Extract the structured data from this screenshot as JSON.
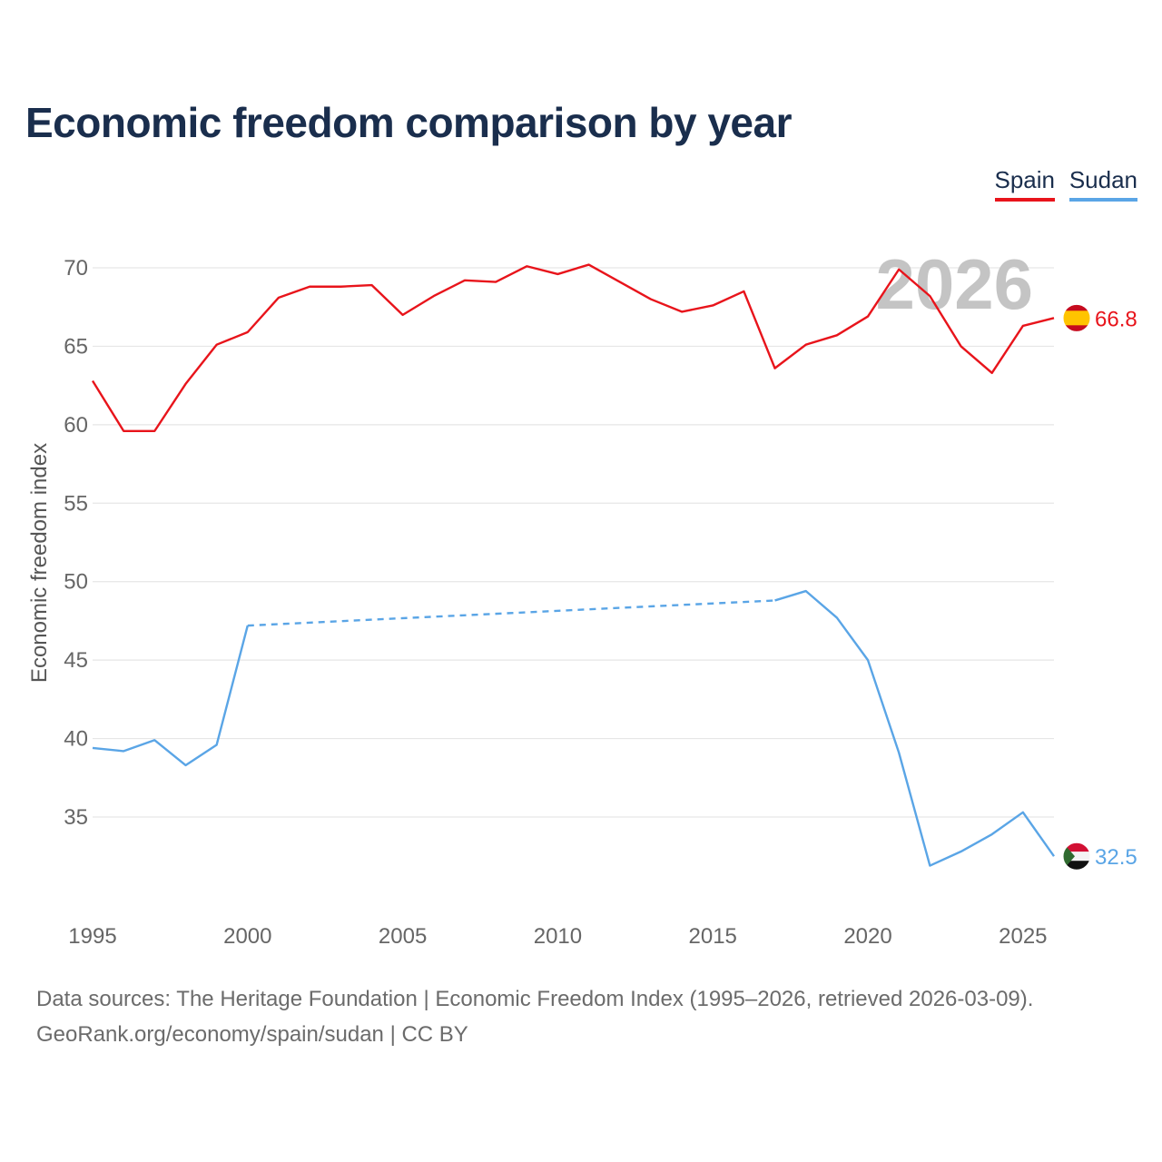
{
  "title": "Economic freedom comparison by year",
  "legend": [
    {
      "name": "Spain",
      "color": "#e8141b"
    },
    {
      "name": "Sudan",
      "color": "#5aa5e6"
    }
  ],
  "source": {
    "line1": "Data sources: The Heritage Foundation | Economic Freedom Index (1995–2026, retrieved 2026-03-09).",
    "line2": "GeoRank.org/economy/spain/sudan | CC BY"
  },
  "chart_data": {
    "type": "line",
    "title": "Economic freedom comparison by year",
    "xlabel": "",
    "ylabel": "Economic freedom index",
    "watermark_year": "2026",
    "xlim": [
      1995,
      2026
    ],
    "ylim": [
      30,
      72
    ],
    "x_ticks": [
      1995,
      2000,
      2005,
      2010,
      2015,
      2020,
      2025
    ],
    "y_ticks": [
      35,
      40,
      45,
      50,
      55,
      60,
      65,
      70
    ],
    "grid": true,
    "series": [
      {
        "name": "Spain",
        "color": "#e8141b",
        "end_label": "66.8",
        "flag": "spain-flag",
        "points": [
          [
            1995,
            62.8
          ],
          [
            1996,
            59.6
          ],
          [
            1997,
            59.6
          ],
          [
            1998,
            62.6
          ],
          [
            1999,
            65.1
          ],
          [
            2000,
            65.9
          ],
          [
            2001,
            68.1
          ],
          [
            2002,
            68.8
          ],
          [
            2003,
            68.8
          ],
          [
            2004,
            68.9
          ],
          [
            2005,
            67.0
          ],
          [
            2006,
            68.2
          ],
          [
            2007,
            69.2
          ],
          [
            2008,
            69.1
          ],
          [
            2009,
            70.1
          ],
          [
            2010,
            69.6
          ],
          [
            2011,
            70.2
          ],
          [
            2012,
            69.1
          ],
          [
            2013,
            68.0
          ],
          [
            2014,
            67.2
          ],
          [
            2015,
            67.6
          ],
          [
            2016,
            68.5
          ],
          [
            2017,
            63.6
          ],
          [
            2018,
            65.1
          ],
          [
            2019,
            65.7
          ],
          [
            2020,
            66.9
          ],
          [
            2021,
            69.9
          ],
          [
            2022,
            68.2
          ],
          [
            2023,
            65.0
          ],
          [
            2024,
            63.3
          ],
          [
            2025,
            66.3
          ],
          [
            2026,
            66.8
          ]
        ]
      },
      {
        "name": "Sudan",
        "color": "#5aa5e6",
        "end_label": "32.5",
        "flag": "sudan-flag",
        "points": [
          [
            1995,
            39.4
          ],
          [
            1996,
            39.2
          ],
          [
            1997,
            39.9
          ],
          [
            1998,
            38.3
          ],
          [
            1999,
            39.6
          ],
          [
            2000,
            47.2
          ],
          [
            2017,
            48.8
          ],
          [
            2018,
            49.4
          ],
          [
            2019,
            47.7
          ],
          [
            2020,
            45.0
          ],
          [
            2021,
            39.1
          ],
          [
            2022,
            31.9
          ],
          [
            2023,
            32.8
          ],
          [
            2024,
            33.9
          ],
          [
            2025,
            35.3
          ],
          [
            2026,
            32.5
          ]
        ],
        "gap": [
          2000,
          2017
        ]
      }
    ]
  }
}
